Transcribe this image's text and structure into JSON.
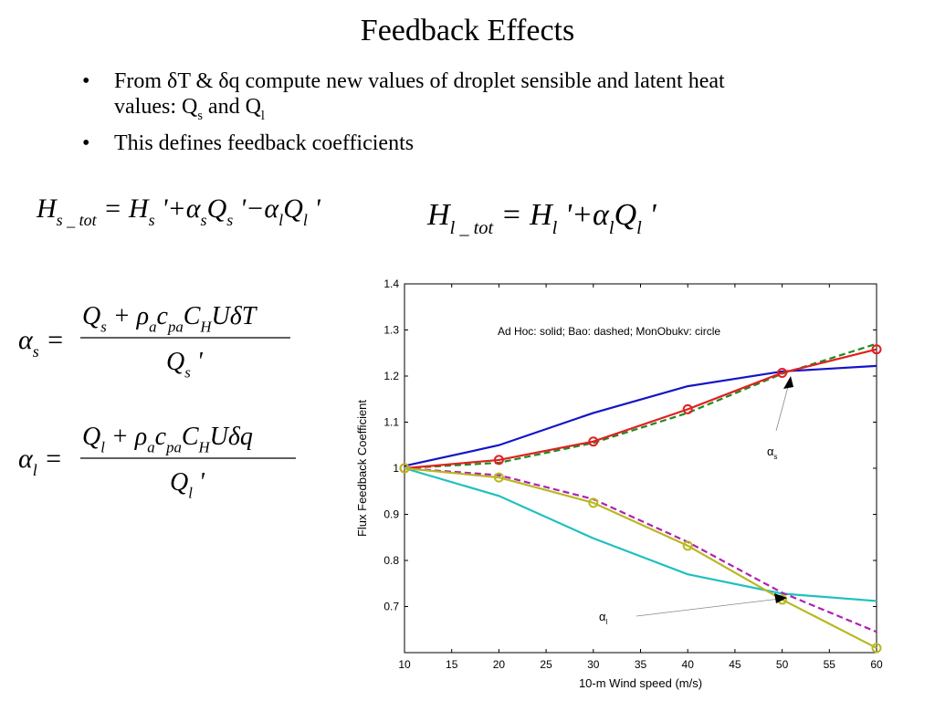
{
  "title": "Feedback Effects",
  "bullets": [
    [
      [
        "From δT & δq compute new values of droplet sensible and latent heat"
      ],
      [
        "values: Q",
        {
          "sub": "s"
        },
        " and Q",
        {
          "sub": "l"
        }
      ]
    ],
    [
      [
        "This defines feedback coefficients"
      ]
    ]
  ],
  "equations": {
    "h_s_tot": [
      "H",
      {
        "sub": "s _ tot"
      },
      " = H",
      {
        "sub": "s"
      },
      " '+α",
      {
        "sub": "s"
      },
      "Q",
      {
        "sub": "s"
      },
      " '−α",
      {
        "sub": "l"
      },
      "Q",
      {
        "sub": "l"
      },
      " '"
    ],
    "h_l_tot": [
      "H",
      {
        "sub": "l _ tot"
      },
      " = H",
      {
        "sub": "l"
      },
      " '+α",
      {
        "sub": "l"
      },
      "Q",
      {
        "sub": "l"
      },
      " '"
    ],
    "alpha_s": {
      "lhs": [
        "α",
        {
          "sub": "s"
        },
        " ="
      ],
      "num": [
        "Q",
        {
          "sub": "s"
        },
        " + ρ",
        {
          "sub": "a"
        },
        "c",
        {
          "sub": "pa"
        },
        "C",
        {
          "sub": "H"
        },
        "UδT"
      ],
      "den": [
        "Q",
        {
          "sub": "s"
        },
        " '"
      ]
    },
    "alpha_l": {
      "lhs": [
        "α",
        {
          "sub": "l"
        },
        " ="
      ],
      "num": [
        "Q",
        {
          "sub": "l"
        },
        " + ρ",
        {
          "sub": "a"
        },
        "c",
        {
          "sub": "pa"
        },
        "C",
        {
          "sub": "H"
        },
        "Uδq"
      ],
      "den": [
        "Q",
        {
          "sub": "l"
        },
        " '"
      ]
    }
  },
  "chart_data": {
    "type": "line",
    "xlabel": "10-m Wind speed (m/s)",
    "ylabel": "Flux Feedback Coefficient",
    "annotation": "Ad Hoc: solid; Bao: dashed; MonObukv: circle",
    "arrow_labels": [
      [
        "α",
        {
          "sub": "s"
        }
      ],
      [
        "α",
        {
          "sub": "l"
        }
      ]
    ],
    "x": [
      10,
      20,
      30,
      40,
      50,
      60
    ],
    "xlim": [
      10,
      60
    ],
    "xticks": [
      10,
      15,
      20,
      25,
      30,
      35,
      40,
      45,
      50,
      55,
      60
    ],
    "ylim": [
      0.6,
      1.4
    ],
    "yticks": [
      0.7,
      0.8,
      0.9,
      1,
      1.1,
      1.2,
      1.3,
      1.4
    ],
    "grid": false,
    "series": [
      {
        "color": "#1414c8",
        "style": "solid",
        "values": [
          1.005,
          1.05,
          1.12,
          1.178,
          1.21,
          1.222
        ]
      },
      {
        "color": "#208a20",
        "style": "dashed",
        "values": [
          1.0,
          1.012,
          1.055,
          1.12,
          1.205,
          1.27
        ]
      },
      {
        "color": "#e02020",
        "style": "solid",
        "marker": "circle",
        "values": [
          1.0,
          1.018,
          1.058,
          1.128,
          1.207,
          1.258
        ]
      },
      {
        "color": "#20c0c0",
        "style": "solid",
        "values": [
          1.0,
          0.94,
          0.848,
          0.77,
          0.728,
          0.712
        ]
      },
      {
        "color": "#b020b0",
        "style": "dashed",
        "values": [
          1.0,
          0.985,
          0.933,
          0.84,
          0.73,
          0.645
        ]
      },
      {
        "color": "#b8b820",
        "style": "solid",
        "marker": "circle",
        "values": [
          1.0,
          0.98,
          0.925,
          0.832,
          0.715,
          0.61
        ]
      }
    ]
  }
}
